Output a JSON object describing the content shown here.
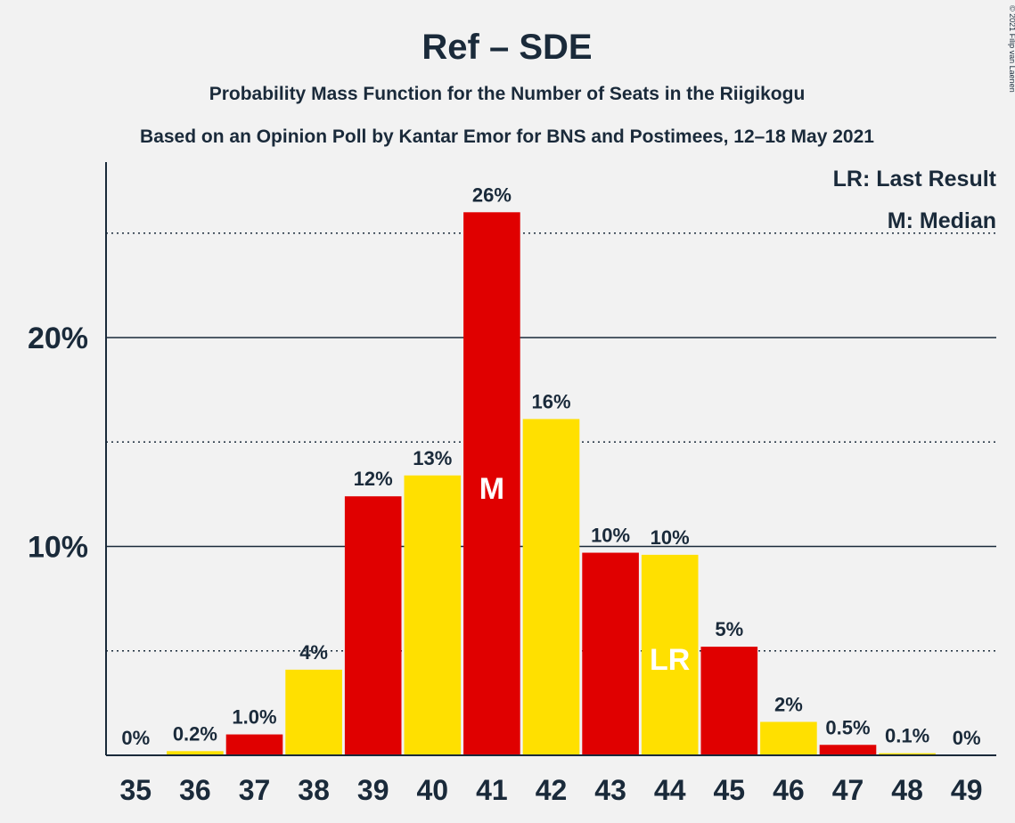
{
  "chart_data": {
    "type": "bar",
    "title": "Ref – SDE",
    "subtitle": "Probability Mass Function for the Number of Seats in the Riigikogu",
    "subtitle2": "Based on an Opinion Poll by Kantar Emor for BNS and Postimees, 12–18 May 2021",
    "copyright": "© 2021 Filip van Laenen",
    "legend": [
      "LR: Last Result",
      "M: Median"
    ],
    "legend_position": "top-right",
    "categories": [
      "35",
      "36",
      "37",
      "38",
      "39",
      "40",
      "41",
      "42",
      "43",
      "44",
      "45",
      "46",
      "47",
      "48",
      "49"
    ],
    "values": [
      0,
      0.2,
      1.0,
      4.1,
      12.4,
      13.4,
      26.0,
      16.1,
      9.7,
      9.6,
      5.2,
      1.6,
      0.5,
      0.1,
      0
    ],
    "data_labels": [
      "0%",
      "0.2%",
      "1.0%",
      "4%",
      "12%",
      "13%",
      "26%",
      "16%",
      "10%",
      "10%",
      "5%",
      "2%",
      "0.5%",
      "0.1%",
      "0%"
    ],
    "bar_colors": [
      "#e00000",
      "#ffe000",
      "#e00000",
      "#ffe000",
      "#e00000",
      "#ffe000",
      "#e00000",
      "#ffe000",
      "#e00000",
      "#ffe000",
      "#e00000",
      "#ffe000",
      "#e00000",
      "#ffe000",
      "#e00000"
    ],
    "markers": [
      {
        "category": "41",
        "text": "M"
      },
      {
        "category": "44",
        "text": "LR"
      }
    ],
    "yticks": [
      10,
      20
    ],
    "ytick_labels": [
      "10%",
      "20%"
    ],
    "minor_gridlines": [
      5,
      15,
      25
    ],
    "ylim": [
      0,
      28
    ],
    "grid": true,
    "xlabel": "",
    "ylabel": ""
  }
}
